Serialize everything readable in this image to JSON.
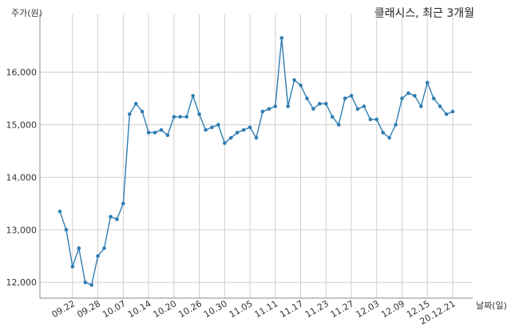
{
  "chart_data": {
    "type": "line",
    "title": "클래시스, 최근 3개월",
    "xlabel": "날짜(일)",
    "ylabel": "주가(원)",
    "ylim": [
      11700,
      17100
    ],
    "yticks": [
      12000,
      13000,
      14000,
      15000,
      16000
    ],
    "ytick_labels": [
      "12,000",
      "13,000",
      "14,000",
      "15,000",
      "16,000"
    ],
    "xtick_labels": [
      "09.22",
      "09.28",
      "10.07",
      "10.14",
      "10.20",
      "10.26",
      "10.30",
      "11.05",
      "11.11",
      "11.17",
      "11.23",
      "11.27",
      "12.03",
      "12.09",
      "12.15",
      "20.12.21"
    ],
    "xtick_index": [
      2,
      6,
      10,
      14,
      18,
      22,
      26,
      30,
      34,
      38,
      42,
      46,
      50,
      54,
      58,
      62
    ],
    "grid": true,
    "series": [
      {
        "color": "#2e7db3",
        "values": [
          13350,
          13000,
          12300,
          12650,
          12000,
          11950,
          12500,
          12650,
          13250,
          13200,
          13500,
          15200,
          15400,
          15250,
          14850,
          14850,
          14900,
          14800,
          15150,
          15150,
          15150,
          15550,
          15200,
          14900,
          14950,
          15000,
          14650,
          14750,
          14850,
          14900,
          14950,
          14750,
          15250,
          15300,
          15350,
          16650,
          15350,
          15850,
          15750,
          15500,
          15300,
          15400,
          15400,
          15150,
          15000,
          15500,
          15550,
          15300,
          15350,
          15100,
          15100,
          14850,
          14750,
          15000,
          15500,
          15600,
          15550,
          15350,
          15800,
          15500,
          15350,
          15200,
          15250
        ]
      }
    ]
  }
}
